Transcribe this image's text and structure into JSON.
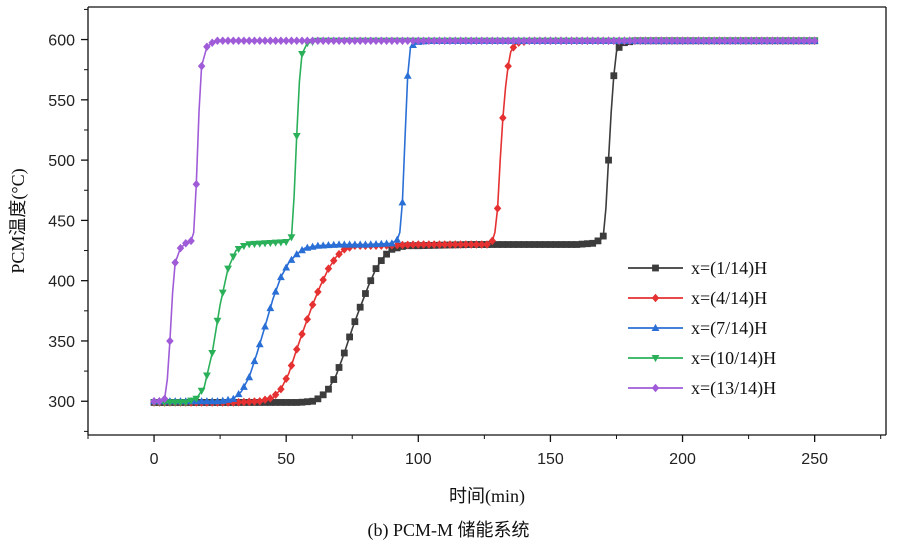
{
  "caption": "(b) PCM-M 储能系统",
  "chart_data": {
    "type": "line",
    "xlabel": "时间(min)",
    "ylabel": "PCM温度(°C)",
    "xlim": [
      -25,
      277
    ],
    "ylim": [
      272,
      627
    ],
    "xticks": [
      0,
      50,
      100,
      150,
      200,
      250
    ],
    "yticks": [
      300,
      350,
      400,
      450,
      500,
      550,
      600
    ],
    "grid": false,
    "legend_position": "center-right",
    "series": [
      {
        "name": "x=(1/14)H",
        "color": "#3c3c3c",
        "marker": "square",
        "points": [
          [
            0,
            299
          ],
          [
            20,
            299
          ],
          [
            40,
            299
          ],
          [
            55,
            299
          ],
          [
            60,
            300
          ],
          [
            63,
            303
          ],
          [
            66,
            310
          ],
          [
            69,
            322
          ],
          [
            72,
            340
          ],
          [
            75,
            360
          ],
          [
            78,
            378
          ],
          [
            81,
            395
          ],
          [
            84,
            410
          ],
          [
            87,
            420
          ],
          [
            90,
            426
          ],
          [
            95,
            429
          ],
          [
            100,
            429
          ],
          [
            120,
            430
          ],
          [
            140,
            430
          ],
          [
            160,
            430
          ],
          [
            166,
            431
          ],
          [
            169,
            434
          ],
          [
            170,
            437
          ],
          [
            171,
            460
          ],
          [
            172,
            500
          ],
          [
            173,
            540
          ],
          [
            174,
            570
          ],
          [
            175,
            590
          ],
          [
            177,
            597
          ],
          [
            182,
            599
          ],
          [
            200,
            599
          ],
          [
            225,
            599
          ],
          [
            250,
            599
          ]
        ]
      },
      {
        "name": "x=(4/14)H",
        "color": "#e53131",
        "marker": "diamond",
        "points": [
          [
            0,
            299
          ],
          [
            20,
            299
          ],
          [
            30,
            299
          ],
          [
            40,
            300
          ],
          [
            45,
            303
          ],
          [
            48,
            310
          ],
          [
            51,
            323
          ],
          [
            54,
            343
          ],
          [
            57,
            362
          ],
          [
            60,
            380
          ],
          [
            63,
            396
          ],
          [
            66,
            410
          ],
          [
            69,
            420
          ],
          [
            72,
            426
          ],
          [
            76,
            429
          ],
          [
            85,
            429
          ],
          [
            100,
            430
          ],
          [
            115,
            430
          ],
          [
            126,
            430
          ],
          [
            128,
            433
          ],
          [
            129,
            440
          ],
          [
            130,
            460
          ],
          [
            131,
            500
          ],
          [
            132,
            535
          ],
          [
            133,
            560
          ],
          [
            134,
            578
          ],
          [
            135,
            590
          ],
          [
            137,
            597
          ],
          [
            142,
            599
          ],
          [
            160,
            599
          ],
          [
            200,
            599
          ],
          [
            250,
            599
          ]
        ]
      },
      {
        "name": "x=(7/14)H",
        "color": "#2a6fd6",
        "marker": "triangle-up",
        "points": [
          [
            0,
            300
          ],
          [
            15,
            300
          ],
          [
            25,
            300
          ],
          [
            30,
            302
          ],
          [
            33,
            308
          ],
          [
            36,
            320
          ],
          [
            39,
            340
          ],
          [
            42,
            362
          ],
          [
            45,
            385
          ],
          [
            48,
            403
          ],
          [
            51,
            415
          ],
          [
            54,
            422
          ],
          [
            57,
            427
          ],
          [
            62,
            429
          ],
          [
            70,
            430
          ],
          [
            80,
            430
          ],
          [
            90,
            431
          ],
          [
            92,
            434
          ],
          [
            93,
            440
          ],
          [
            94,
            465
          ],
          [
            95,
            520
          ],
          [
            96,
            570
          ],
          [
            97,
            593
          ],
          [
            99,
            598
          ],
          [
            105,
            599
          ],
          [
            130,
            599
          ],
          [
            200,
            599
          ],
          [
            250,
            599
          ]
        ]
      },
      {
        "name": "x=(10/14)H",
        "color": "#2bb05a",
        "marker": "triangle-down",
        "points": [
          [
            0,
            299
          ],
          [
            5,
            299
          ],
          [
            12,
            299
          ],
          [
            16,
            302
          ],
          [
            19,
            312
          ],
          [
            22,
            340
          ],
          [
            25,
            380
          ],
          [
            28,
            410
          ],
          [
            31,
            425
          ],
          [
            35,
            430
          ],
          [
            42,
            431
          ],
          [
            50,
            432
          ],
          [
            52,
            436
          ],
          [
            53,
            470
          ],
          [
            54,
            520
          ],
          [
            55,
            565
          ],
          [
            56,
            588
          ],
          [
            58,
            597
          ],
          [
            62,
            599
          ],
          [
            80,
            599
          ],
          [
            150,
            599
          ],
          [
            250,
            599
          ]
        ]
      },
      {
        "name": "x=(13/14)H",
        "color": "#a05cd8",
        "marker": "diamond",
        "points": [
          [
            0,
            300
          ],
          [
            2,
            300
          ],
          [
            4,
            302
          ],
          [
            5,
            318
          ],
          [
            6,
            350
          ],
          [
            7,
            390
          ],
          [
            8,
            415
          ],
          [
            10,
            427
          ],
          [
            12,
            431
          ],
          [
            14,
            433
          ],
          [
            15,
            440
          ],
          [
            16,
            480
          ],
          [
            17,
            540
          ],
          [
            18,
            578
          ],
          [
            20,
            594
          ],
          [
            23,
            599
          ],
          [
            30,
            599
          ],
          [
            60,
            599
          ],
          [
            120,
            599
          ],
          [
            200,
            599
          ],
          [
            250,
            599
          ]
        ]
      }
    ]
  }
}
